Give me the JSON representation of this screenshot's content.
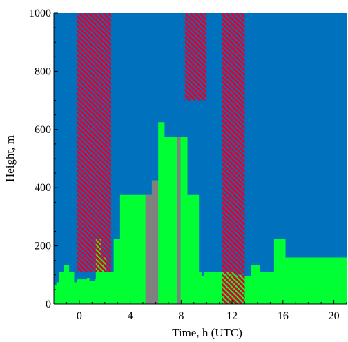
{
  "chart_data": {
    "type": "heatmap",
    "title": "",
    "xlabel": "Time, h (UTC)",
    "ylabel": "Height, m",
    "xlim": [
      -2,
      21
    ],
    "ylim": [
      0,
      1000
    ],
    "x_ticks": [
      0,
      4,
      8,
      12,
      16,
      20
    ],
    "y_ticks": [
      0,
      200,
      400,
      600,
      800,
      1000
    ],
    "colors": {
      "background": "#0072bd",
      "layer": "#00ff33",
      "gap": "#808080",
      "hatch": "#e3002a"
    },
    "layer_height_steps": [
      [
        -2.0,
        65
      ],
      [
        -1.8,
        75
      ],
      [
        -1.6,
        110
      ],
      [
        -1.2,
        135
      ],
      [
        -0.8,
        110
      ],
      [
        -0.4,
        75
      ],
      [
        -0.2,
        85
      ],
      [
        0.6,
        90
      ],
      [
        0.8,
        80
      ],
      [
        1.2,
        85
      ],
      [
        1.3,
        225
      ],
      [
        1.7,
        160
      ],
      [
        2.1,
        110
      ],
      [
        2.7,
        225
      ],
      [
        3.2,
        375
      ],
      [
        5.5,
        375
      ],
      [
        5.7,
        425
      ],
      [
        6.2,
        625
      ],
      [
        6.7,
        575
      ],
      [
        8.5,
        375
      ],
      [
        9.4,
        110
      ],
      [
        9.6,
        95
      ],
      [
        9.8,
        110
      ],
      [
        11.2,
        110
      ],
      [
        12.3,
        100
      ],
      [
        12.9,
        95
      ],
      [
        13.0,
        95
      ],
      [
        13.5,
        135
      ],
      [
        14.2,
        110
      ],
      [
        15.3,
        225
      ],
      [
        16.2,
        160
      ],
      [
        21.0,
        160
      ]
    ],
    "gray_bands": [
      {
        "x": [
          5.2,
          5.7
        ],
        "top": 375
      },
      {
        "x": [
          5.7,
          6.2
        ],
        "top": 425
      },
      {
        "x": [
          7.7,
          7.95
        ],
        "top": 575
      }
    ],
    "hatched_regions": [
      {
        "x": [
          -0.2,
          2.5
        ],
        "y": [
          110,
          1000
        ]
      },
      {
        "x": [
          8.3,
          10.0
        ],
        "y": [
          700,
          1000
        ]
      },
      {
        "x": [
          11.2,
          13.0
        ],
        "y": [
          100,
          1000
        ]
      },
      {
        "x": [
          11.2,
          13.0
        ],
        "y": [
          0,
          100
        ]
      }
    ]
  }
}
